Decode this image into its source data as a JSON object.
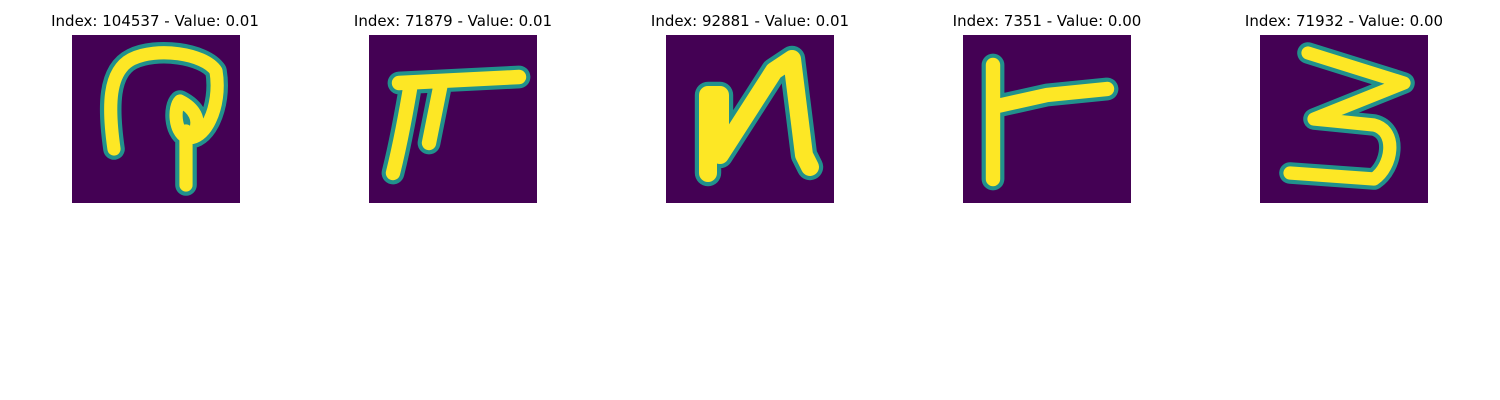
{
  "colors": {
    "background": "#440154",
    "foreground": "#fde725",
    "edge": "#21918c"
  },
  "panels": [
    {
      "title": "Index: 104537 - Value: 0.01",
      "glyph": "handwritten-character-a"
    },
    {
      "title": "Index: 71879 - Value: 0.01",
      "glyph": "handwritten-character-pi"
    },
    {
      "title": "Index: 92881 - Value: 0.01",
      "glyph": "handwritten-character-n"
    },
    {
      "title": "Index: 7351 - Value: 0.00",
      "glyph": "handwritten-character-r"
    },
    {
      "title": "Index: 71932 - Value: 0.00",
      "glyph": "handwritten-character-3"
    }
  ]
}
